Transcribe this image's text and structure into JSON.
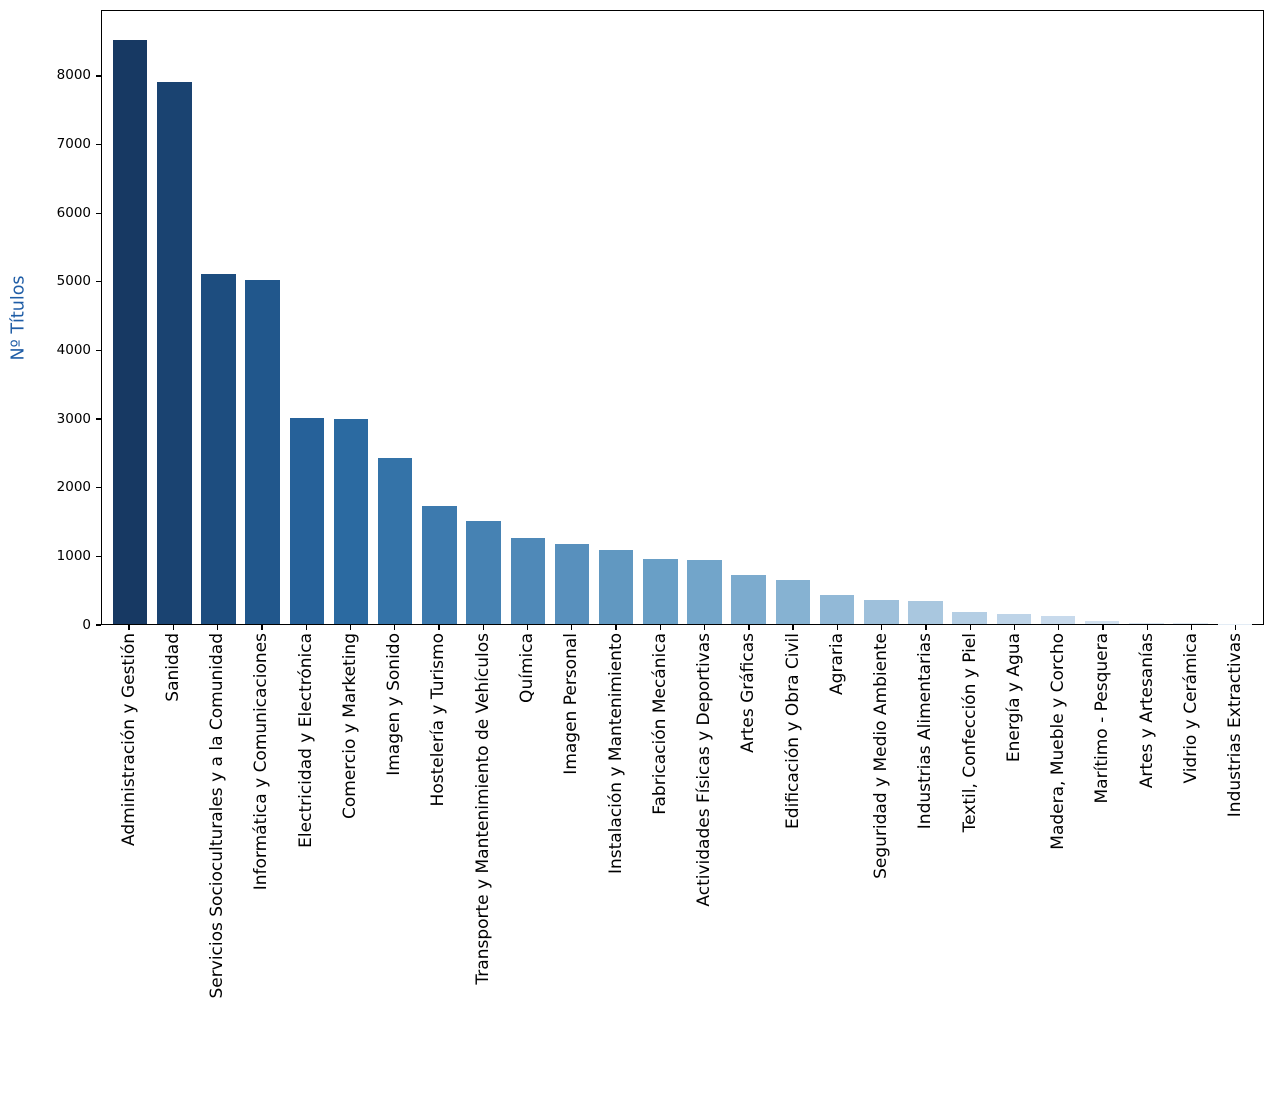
{
  "chart_data": {
    "type": "bar",
    "title": "",
    "xlabel": "",
    "ylabel": "Nº Títulos",
    "ylabel_color": "#1f5da6",
    "axis_color": "#000000",
    "background_color": "#ffffff",
    "grid": false,
    "legend": null,
    "ylim": [
      0,
      8960
    ],
    "yticks": [
      0,
      1000,
      2000,
      3000,
      4000,
      5000,
      6000,
      7000,
      8000
    ],
    "categories": [
      "Administración y Gestión",
      "Sanidad",
      "Servicios Socioculturales y a la Comunidad",
      "Informática y Comunicaciones",
      "Electricidad y Electrónica",
      "Comercio y Marketing",
      "Imagen y Sonido",
      "Hostelería y Turismo",
      "Transporte y Mantenimiento de Vehículos",
      "Química",
      "Imagen Personal",
      "Instalación y Mantenimiento",
      "Fabricación Mecánica",
      "Actividades Físicas y Deportivas",
      "Artes Gráficas",
      "Edificación y Obra Civil",
      "Agraria",
      "Seguridad y Medio Ambiente",
      "Industrias Alimentarias",
      "Textil, Confección y Piel",
      "Energía y Agua",
      "Madera, Mueble y Corcho",
      "Marítimo - Pesquera",
      "Artes y Artesanías",
      "Vidrio y Cerámica",
      "Industrias Extractivas"
    ],
    "values": [
      8530,
      7920,
      5120,
      5030,
      3010,
      2990,
      2430,
      1730,
      1500,
      1260,
      1170,
      1080,
      950,
      930,
      710,
      650,
      420,
      350,
      330,
      170,
      150,
      110,
      40,
      15,
      10,
      5
    ],
    "bar_colors": [
      "#173963",
      "#1a4371",
      "#1d4d7f",
      "#21578c",
      "#266199",
      "#2b6aa1",
      "#3473a8",
      "#3d7aae",
      "#4682b3",
      "#4f89b8",
      "#5890bd",
      "#6198c1",
      "#699fc6",
      "#72a5ca",
      "#7cabce",
      "#86b2d2",
      "#92b9d7",
      "#9ec0db",
      "#a9c7df",
      "#b4cee4",
      "#bed4e8",
      "#c8daec",
      "#d1e0ef",
      "#d8e4f1",
      "#dee8f3",
      "#e3ecf5"
    ]
  }
}
